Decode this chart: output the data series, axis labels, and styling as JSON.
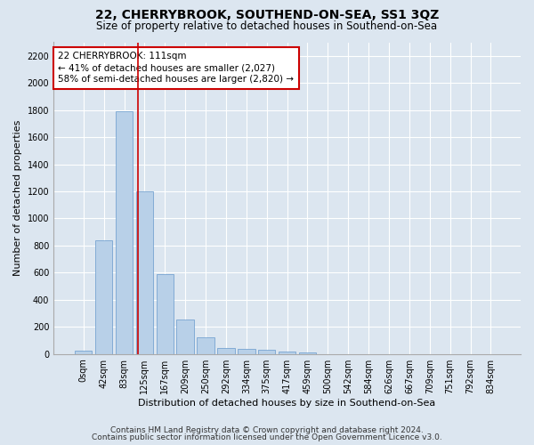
{
  "title1": "22, CHERRYBROOK, SOUTHEND-ON-SEA, SS1 3QZ",
  "title2": "Size of property relative to detached houses in Southend-on-Sea",
  "xlabel": "Distribution of detached houses by size in Southend-on-Sea",
  "ylabel": "Number of detached properties",
  "footnote1": "Contains HM Land Registry data © Crown copyright and database right 2024.",
  "footnote2": "Contains public sector information licensed under the Open Government Licence v3.0.",
  "bar_labels": [
    "0sqm",
    "42sqm",
    "83sqm",
    "125sqm",
    "167sqm",
    "209sqm",
    "250sqm",
    "292sqm",
    "334sqm",
    "375sqm",
    "417sqm",
    "459sqm",
    "500sqm",
    "542sqm",
    "584sqm",
    "626sqm",
    "667sqm",
    "709sqm",
    "751sqm",
    "792sqm",
    "834sqm"
  ],
  "bar_values": [
    25,
    840,
    1790,
    1200,
    590,
    255,
    125,
    45,
    40,
    30,
    15,
    8,
    0,
    0,
    0,
    0,
    0,
    0,
    0,
    0,
    0
  ],
  "bar_color": "#b8d0e8",
  "bar_edge_color": "#6699cc",
  "property_line_x": 2.67,
  "annotation_title": "22 CHERRYBROOK: 111sqm",
  "annotation_line1": "← 41% of detached houses are smaller (2,027)",
  "annotation_line2": "58% of semi-detached houses are larger (2,820) →",
  "annotation_box_color": "#ffffff",
  "annotation_box_edge": "#cc0000",
  "vline_color": "#cc0000",
  "ylim": [
    0,
    2300
  ],
  "yticks": [
    0,
    200,
    400,
    600,
    800,
    1000,
    1200,
    1400,
    1600,
    1800,
    2000,
    2200
  ],
  "background_color": "#dce6f0",
  "plot_bg_color": "#dce6f0",
  "grid_color": "#ffffff",
  "title1_fontsize": 10,
  "title2_fontsize": 8.5,
  "xlabel_fontsize": 8,
  "ylabel_fontsize": 8,
  "tick_fontsize": 7,
  "annotation_fontsize": 7.5,
  "footnote_fontsize": 6.5
}
